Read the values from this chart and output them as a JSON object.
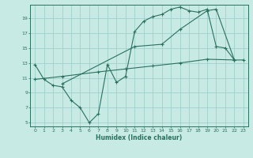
{
  "xlabel": "Humidex (Indice chaleur)",
  "bg_color": "#c8eae4",
  "grid_color": "#a0d0cc",
  "line_color": "#2a7060",
  "xlim": [
    -0.5,
    23.5
  ],
  "ylim": [
    4.5,
    20.8
  ],
  "yticks": [
    5,
    7,
    9,
    11,
    13,
    15,
    17,
    19
  ],
  "xticks": [
    0,
    1,
    2,
    3,
    4,
    5,
    6,
    7,
    8,
    9,
    10,
    11,
    12,
    13,
    14,
    15,
    16,
    17,
    18,
    19,
    20,
    21,
    22,
    23
  ],
  "line1_x": [
    0,
    1,
    2,
    3,
    4,
    5,
    6,
    7,
    8,
    9,
    10,
    11,
    12,
    13,
    14,
    15,
    16,
    17,
    18,
    19,
    20,
    21,
    22
  ],
  "line1_y": [
    12.8,
    10.8,
    10.0,
    9.8,
    8.0,
    7.0,
    5.0,
    6.2,
    12.8,
    10.4,
    11.2,
    17.2,
    18.6,
    19.2,
    19.5,
    20.2,
    20.5,
    20.0,
    19.8,
    20.2,
    15.2,
    15.0,
    13.4
  ],
  "line2_x": [
    3,
    11,
    14,
    16,
    19,
    20,
    22
  ],
  "line2_y": [
    10.2,
    15.2,
    15.5,
    17.5,
    20.0,
    20.2,
    13.4
  ],
  "line3_x": [
    0,
    3,
    7,
    10,
    13,
    16,
    19,
    22,
    23
  ],
  "line3_y": [
    10.8,
    11.2,
    11.8,
    12.2,
    12.6,
    13.0,
    13.5,
    13.4,
    13.4
  ]
}
